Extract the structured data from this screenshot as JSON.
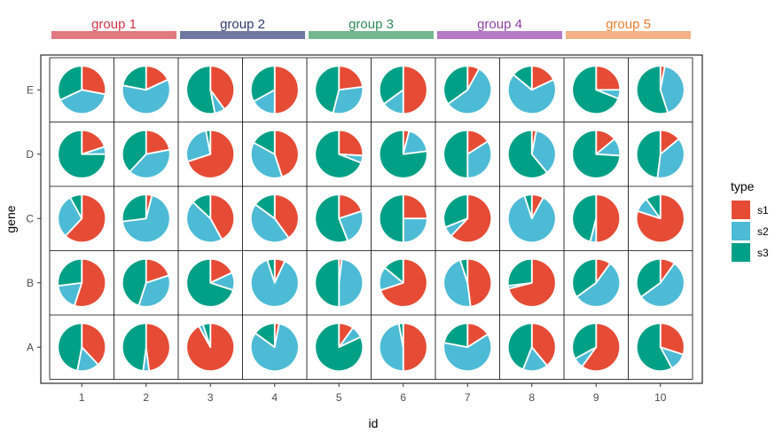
{
  "chart_data": {
    "type": "pie-grid",
    "title": "",
    "xlabel": "id",
    "ylabel": "gene",
    "x_categories": [
      "1",
      "2",
      "3",
      "4",
      "5",
      "6",
      "7",
      "8",
      "9",
      "10"
    ],
    "y_categories": [
      "A",
      "B",
      "C",
      "D",
      "E"
    ],
    "legend": {
      "title": "type",
      "placement": "right",
      "entries": [
        {
          "name": "s1",
          "color": "#E64B35"
        },
        {
          "name": "s2",
          "color": "#4DBBD5"
        },
        {
          "name": "s3",
          "color": "#00A087"
        }
      ]
    },
    "groups": [
      {
        "label": "group 1",
        "ids": [
          "1",
          "2"
        ],
        "bar_color": "#E07A80",
        "text_color": "#D6334A"
      },
      {
        "label": "group 2",
        "ids": [
          "3",
          "4"
        ],
        "bar_color": "#6E78A0",
        "text_color": "#2E3A6E"
      },
      {
        "label": "group 3",
        "ids": [
          "5",
          "6"
        ],
        "bar_color": "#74B88E",
        "text_color": "#2E8B57"
      },
      {
        "label": "group 4",
        "ids": [
          "7",
          "8"
        ],
        "bar_color": "#B57AC4",
        "text_color": "#8E3FA5"
      },
      {
        "label": "group 5",
        "ids": [
          "9",
          "10"
        ],
        "bar_color": "#F4B183",
        "text_color": "#EE7D2D"
      }
    ],
    "pies": {
      "E": [
        [
          0.28,
          0.4,
          0.32
        ],
        [
          0.18,
          0.6,
          0.22
        ],
        [
          0.4,
          0.07,
          0.53
        ],
        [
          0.5,
          0.17,
          0.33
        ],
        [
          0.23,
          0.31,
          0.46
        ],
        [
          0.5,
          0.15,
          0.35
        ],
        [
          0.08,
          0.57,
          0.35
        ],
        [
          0.18,
          0.68,
          0.14
        ],
        [
          0.25,
          0.06,
          0.69
        ],
        [
          0.03,
          0.42,
          0.55
        ]
      ],
      "D": [
        [
          0.2,
          0.05,
          0.75
        ],
        [
          0.22,
          0.4,
          0.38
        ],
        [
          0.7,
          0.27,
          0.03
        ],
        [
          0.45,
          0.38,
          0.17
        ],
        [
          0.26,
          0.05,
          0.69
        ],
        [
          0.04,
          0.19,
          0.77
        ],
        [
          0.16,
          0.34,
          0.5
        ],
        [
          0.03,
          0.36,
          0.61
        ],
        [
          0.14,
          0.12,
          0.74
        ],
        [
          0.14,
          0.38,
          0.48
        ]
      ],
      "C": [
        [
          0.62,
          0.3,
          0.08
        ],
        [
          0.04,
          0.69,
          0.27
        ],
        [
          0.42,
          0.45,
          0.13
        ],
        [
          0.4,
          0.45,
          0.15
        ],
        [
          0.2,
          0.24,
          0.56
        ],
        [
          0.25,
          0.25,
          0.5
        ],
        [
          0.62,
          0.07,
          0.31
        ],
        [
          0.08,
          0.87,
          0.05
        ],
        [
          0.5,
          0.04,
          0.46
        ],
        [
          0.8,
          0.1,
          0.1
        ]
      ],
      "B": [
        [
          0.55,
          0.18,
          0.27
        ],
        [
          0.2,
          0.35,
          0.45
        ],
        [
          0.18,
          0.12,
          0.7
        ],
        [
          0.07,
          0.88,
          0.05
        ],
        [
          0.02,
          0.48,
          0.5
        ],
        [
          0.7,
          0.16,
          0.14
        ],
        [
          0.48,
          0.47,
          0.05
        ],
        [
          0.71,
          0.02,
          0.27
        ],
        [
          0.1,
          0.55,
          0.35
        ],
        [
          0.1,
          0.55,
          0.35
        ]
      ],
      "A": [
        [
          0.38,
          0.15,
          0.47
        ],
        [
          0.48,
          0.04,
          0.48
        ],
        [
          0.92,
          0.03,
          0.05
        ],
        [
          0.03,
          0.82,
          0.15
        ],
        [
          0.1,
          0.08,
          0.82
        ],
        [
          0.5,
          0.47,
          0.03
        ],
        [
          0.16,
          0.62,
          0.22
        ],
        [
          0.39,
          0.17,
          0.44
        ],
        [
          0.6,
          0.07,
          0.33
        ],
        [
          0.3,
          0.12,
          0.58
        ]
      ]
    }
  }
}
